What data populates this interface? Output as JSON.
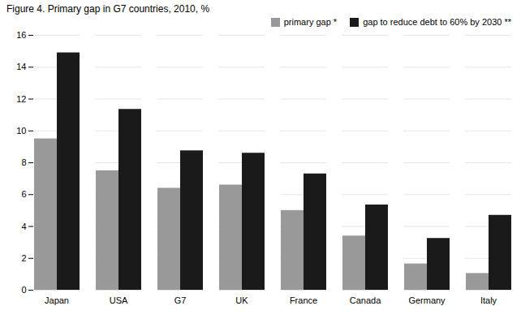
{
  "chart_data": {
    "type": "bar",
    "title": "Figure 4. Primary gap in G7 countries, 2010, %",
    "categories": [
      "Japan",
      "USA",
      "G7",
      "UK",
      "France",
      "Canada",
      "Germany",
      "Italy"
    ],
    "series": [
      {
        "name": "primary gap  *",
        "color": "#999999",
        "values": [
          9.5,
          7.5,
          6.4,
          6.6,
          5.0,
          3.4,
          1.65,
          1.05
        ]
      },
      {
        "name": "gap to reduce debt to 60% by 2030 **",
        "color": "#1a1a1a",
        "values": [
          14.9,
          11.35,
          8.75,
          8.6,
          7.3,
          5.35,
          3.25,
          4.7
        ]
      }
    ],
    "ylim": [
      0,
      16
    ],
    "yticks": [
      0,
      2,
      4,
      6,
      8,
      10,
      12,
      14,
      16
    ],
    "grid": true,
    "legend": "upper right"
  }
}
